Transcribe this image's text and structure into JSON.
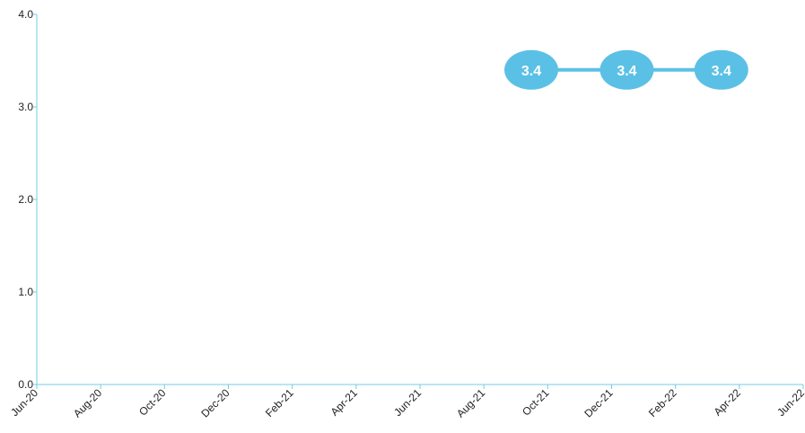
{
  "chart_data": {
    "type": "line",
    "title": "",
    "xlabel": "",
    "ylabel": "",
    "x_ticks": [
      "Jun-20",
      "Aug-20",
      "Oct-20",
      "Dec-20",
      "Feb-21",
      "Apr-21",
      "Jun-21",
      "Aug-21",
      "Oct-21",
      "Dec-21",
      "Feb-22",
      "Apr-22",
      "Jun-22"
    ],
    "y_ticks": [
      "0.0",
      "1.0",
      "2.0",
      "3.0",
      "4.0"
    ],
    "ylim": [
      0,
      4
    ],
    "xlim": [
      "2020-06-01",
      "2022-06-01"
    ],
    "grid": false,
    "legend": "none",
    "series": [
      {
        "x": [
          "2021-09-15",
          "2021-12-15",
          "2022-03-15"
        ],
        "values": [
          3.4,
          3.4,
          3.4
        ],
        "labels": [
          "3.4",
          "3.4",
          "3.4"
        ]
      }
    ],
    "colors": {
      "axis": "#6fcfe0",
      "line": "#5bc0e5",
      "marker": "#5bc0e5",
      "label_text": "#ffffff",
      "tick_text": "#222222"
    }
  }
}
